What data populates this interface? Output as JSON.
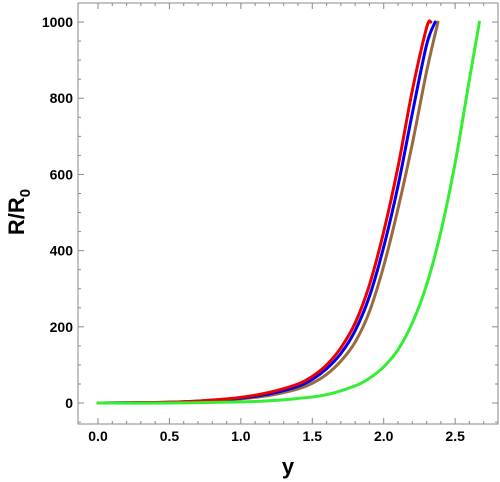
{
  "chart_data": {
    "type": "line",
    "title": "",
    "xlabel": "y",
    "ylabel_main": "R/R",
    "ylabel_sub": "0",
    "xlim": [
      -0.14,
      2.8
    ],
    "ylim": [
      -55,
      1050
    ],
    "xticks": [
      0.0,
      0.5,
      1.0,
      1.5,
      2.0,
      2.5
    ],
    "xtick_labels": [
      "0.0",
      "0.5",
      "1.0",
      "1.5",
      "2.0",
      "2.5"
    ],
    "yticks": [
      0,
      200,
      400,
      600,
      800,
      1000
    ],
    "ytick_labels": [
      "0",
      "200",
      "400",
      "600",
      "800",
      "1000"
    ],
    "grid": false,
    "legend": "none",
    "series": [
      {
        "color": "#9b6a3c",
        "x": [
          0.0,
          0.5,
          0.8,
          1.0,
          1.2,
          1.4,
          1.5,
          1.6,
          1.7,
          1.8,
          1.9,
          2.0,
          2.1,
          2.2,
          2.3,
          2.38
        ],
        "y": [
          0,
          2,
          6,
          11,
          20,
          37,
          52,
          75,
          110,
          160,
          240,
          360,
          510,
          680,
          870,
          1000
        ]
      },
      {
        "color": "#0000ee",
        "x": [
          0.0,
          0.5,
          0.8,
          1.0,
          1.2,
          1.4,
          1.5,
          1.6,
          1.7,
          1.8,
          1.9,
          2.0,
          2.1,
          2.2,
          2.3,
          2.36
        ],
        "y": [
          0,
          2,
          7,
          13,
          24,
          44,
          62,
          90,
          130,
          190,
          280,
          410,
          570,
          760,
          940,
          1000
        ]
      },
      {
        "color": "#ee0000",
        "x": [
          0.0,
          0.5,
          0.8,
          1.0,
          1.2,
          1.4,
          1.5,
          1.6,
          1.7,
          1.8,
          1.9,
          2.0,
          2.1,
          2.2,
          2.3,
          2.33
        ],
        "y": [
          0,
          2,
          8,
          15,
          28,
          50,
          70,
          100,
          145,
          210,
          310,
          450,
          620,
          820,
          985,
          1000
        ]
      },
      {
        "color": "#33ee33",
        "x": [
          0.0,
          0.5,
          1.0,
          1.2,
          1.4,
          1.6,
          1.8,
          1.9,
          2.0,
          2.1,
          2.2,
          2.3,
          2.4,
          2.5,
          2.6,
          2.67
        ],
        "y": [
          0,
          0,
          3,
          6,
          12,
          22,
          45,
          65,
          95,
          140,
          210,
          310,
          450,
          630,
          850,
          1000
        ]
      }
    ]
  }
}
